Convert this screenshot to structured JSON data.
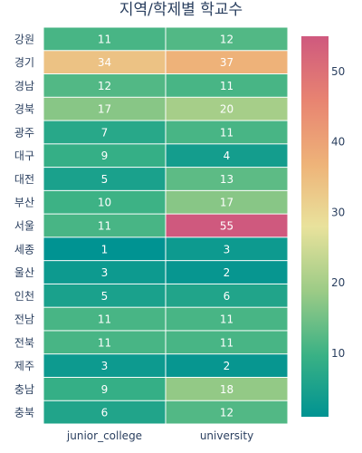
{
  "chart_data": {
    "type": "heatmap",
    "title": "지역/학제별 학교수",
    "x": [
      "junior_college",
      "university"
    ],
    "y": [
      "강원",
      "경기",
      "경남",
      "경북",
      "광주",
      "대구",
      "대전",
      "부산",
      "서울",
      "세종",
      "울산",
      "인천",
      "전남",
      "전북",
      "제주",
      "충남",
      "충북"
    ],
    "z": [
      [
        11,
        12
      ],
      [
        34,
        37
      ],
      [
        12,
        11
      ],
      [
        17,
        20
      ],
      [
        7,
        11
      ],
      [
        9,
        4
      ],
      [
        5,
        13
      ],
      [
        10,
        17
      ],
      [
        11,
        55
      ],
      [
        1,
        3
      ],
      [
        3,
        2
      ],
      [
        5,
        6
      ],
      [
        11,
        11
      ],
      [
        11,
        11
      ],
      [
        3,
        2
      ],
      [
        9,
        18
      ],
      [
        6,
        12
      ]
    ],
    "zrange": [
      1,
      55
    ],
    "colorscale": [
      "#009B9E",
      "#42B7B9",
      "#A7D3D4",
      "#F1F1F1",
      "#E4C1D9",
      "#D691C1",
      "#C75DAB"
    ],
    "colorscale_stops": [
      [
        0.0,
        "#009392"
      ],
      [
        0.16,
        "#39B185"
      ],
      [
        0.33,
        "#9CCB86"
      ],
      [
        0.5,
        "#E9E29C"
      ],
      [
        0.66,
        "#EEB479"
      ],
      [
        0.83,
        "#E88471"
      ],
      [
        1.0,
        "#CF597E"
      ]
    ],
    "colorbar_ticks": [
      10,
      20,
      30,
      40,
      50
    ],
    "show_cell_values": true
  }
}
